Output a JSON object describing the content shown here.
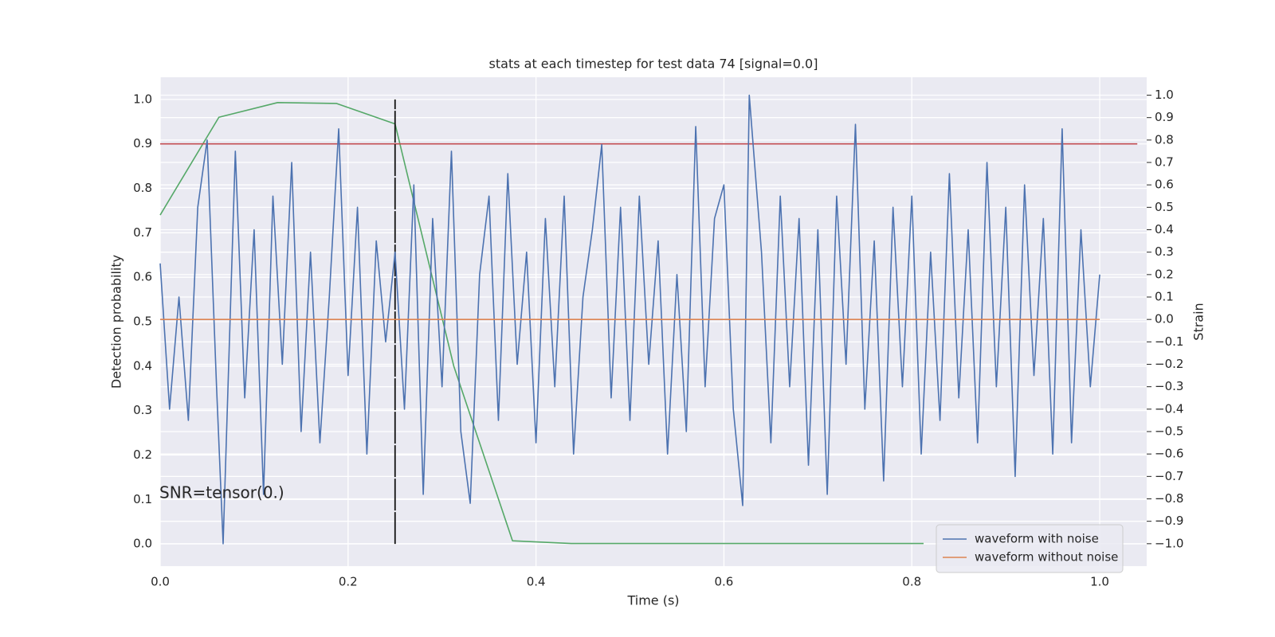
{
  "chart_data": {
    "type": "line",
    "title": "stats at each timestep for test data 74 [signal=0.0]",
    "xlabel": "Time (s)",
    "ylabel": "Detection probability",
    "y2label": "Strain",
    "annotation": "SNR=tensor(0.)",
    "xlim": [
      0,
      1.05
    ],
    "xticks": [
      {
        "value": 0,
        "label": "0.0"
      },
      {
        "value": 0.2,
        "label": "0.2"
      },
      {
        "value": 0.4,
        "label": "0.4"
      },
      {
        "value": 0.6,
        "label": "0.6"
      },
      {
        "value": 0.8,
        "label": "0.8"
      },
      {
        "value": 1,
        "label": "1.0"
      }
    ],
    "ylim": [
      -0.05,
      1.05
    ],
    "yticks": [
      {
        "value": 0,
        "label": "0.0"
      },
      {
        "value": 0.1,
        "label": "0.1"
      },
      {
        "value": 0.2,
        "label": "0.2"
      },
      {
        "value": 0.3,
        "label": "0.3"
      },
      {
        "value": 0.4,
        "label": "0.4"
      },
      {
        "value": 0.5,
        "label": "0.5"
      },
      {
        "value": 0.6,
        "label": "0.6"
      },
      {
        "value": 0.7,
        "label": "0.7"
      },
      {
        "value": 0.8,
        "label": "0.8"
      },
      {
        "value": 0.9,
        "label": "0.9"
      },
      {
        "value": 1,
        "label": "1.0"
      }
    ],
    "y2lim": [
      -1.1,
      1.08
    ],
    "y2ticks": [
      {
        "value": -1,
        "label": "−1.0"
      },
      {
        "value": -0.9,
        "label": "−0.9"
      },
      {
        "value": -0.8,
        "label": "−0.8"
      },
      {
        "value": -0.7,
        "label": "−0.7"
      },
      {
        "value": -0.6,
        "label": "−0.6"
      },
      {
        "value": -0.5,
        "label": "−0.5"
      },
      {
        "value": -0.4,
        "label": "−0.4"
      },
      {
        "value": -0.3,
        "label": "−0.3"
      },
      {
        "value": -0.2,
        "label": "−0.2"
      },
      {
        "value": -0.1,
        "label": "−0.1"
      },
      {
        "value": 0,
        "label": "0.0"
      },
      {
        "value": 0.1,
        "label": "0.1"
      },
      {
        "value": 0.2,
        "label": "0.2"
      },
      {
        "value": 0.3,
        "label": "0.3"
      },
      {
        "value": 0.4,
        "label": "0.4"
      },
      {
        "value": 0.5,
        "label": "0.5"
      },
      {
        "value": 0.6,
        "label": "0.6"
      },
      {
        "value": 0.7,
        "label": "0.7"
      },
      {
        "value": 0.8,
        "label": "0.8"
      },
      {
        "value": 0.9,
        "label": "0.9"
      },
      {
        "value": 1,
        "label": "1.0"
      }
    ],
    "grid": true,
    "legend": "lower right",
    "series": [
      {
        "name": "waveform with noise",
        "color": "#4c72b0",
        "axis": "y2",
        "x": [
          0,
          0.01,
          0.02,
          0.03,
          0.04,
          0.05,
          0.06,
          0.067,
          0.08,
          0.09,
          0.1,
          0.11,
          0.12,
          0.13,
          0.14,
          0.15,
          0.16,
          0.17,
          0.18,
          0.19,
          0.2,
          0.21,
          0.22,
          0.23,
          0.24,
          0.25,
          0.26,
          0.27,
          0.28,
          0.29,
          0.3,
          0.31,
          0.32,
          0.33,
          0.34,
          0.35,
          0.36,
          0.37,
          0.38,
          0.39,
          0.4,
          0.41,
          0.42,
          0.43,
          0.44,
          0.45,
          0.46,
          0.47,
          0.48,
          0.49,
          0.5,
          0.51,
          0.52,
          0.53,
          0.54,
          0.55,
          0.56,
          0.57,
          0.58,
          0.59,
          0.6,
          0.61,
          0.62,
          0.627,
          0.64,
          0.65,
          0.66,
          0.67,
          0.68,
          0.69,
          0.7,
          0.71,
          0.72,
          0.73,
          0.74,
          0.75,
          0.76,
          0.77,
          0.78,
          0.79,
          0.8,
          0.81,
          0.82,
          0.83,
          0.84,
          0.85,
          0.86,
          0.87,
          0.88,
          0.89,
          0.9,
          0.91,
          0.92,
          0.93,
          0.94,
          0.95,
          0.96,
          0.97,
          0.98,
          0.99,
          1
        ],
        "values": [
          0.25,
          -0.4,
          0.1,
          -0.45,
          0.5,
          0.8,
          -0.3,
          -1.0,
          0.75,
          -0.35,
          0.4,
          -0.78,
          0.55,
          -0.2,
          0.7,
          -0.5,
          0.3,
          -0.55,
          0.1,
          0.85,
          -0.25,
          0.5,
          -0.6,
          0.35,
          -0.1,
          0.3,
          -0.4,
          0.6,
          -0.78,
          0.45,
          -0.3,
          0.75,
          -0.5,
          -0.82,
          0.2,
          0.55,
          -0.45,
          0.65,
          -0.2,
          0.3,
          -0.55,
          0.45,
          -0.3,
          0.55,
          -0.6,
          0.1,
          0.4,
          0.78,
          -0.35,
          0.5,
          -0.45,
          0.55,
          -0.2,
          0.35,
          -0.6,
          0.2,
          -0.5,
          0.86,
          -0.3,
          0.45,
          0.6,
          -0.4,
          -0.83,
          1.0,
          0.3,
          -0.55,
          0.55,
          -0.3,
          0.45,
          -0.65,
          0.4,
          -0.78,
          0.55,
          -0.2,
          0.87,
          -0.4,
          0.35,
          -0.72,
          0.5,
          -0.3,
          0.55,
          -0.6,
          0.3,
          -0.45,
          0.65,
          -0.35,
          0.4,
          -0.55,
          0.7,
          -0.3,
          0.5,
          -0.7,
          0.6,
          -0.25,
          0.45,
          -0.6,
          0.85,
          -0.55,
          0.4,
          -0.3,
          0.2
        ]
      },
      {
        "name": "waveform without noise",
        "color": "#dd8452",
        "axis": "y2",
        "x": [
          0,
          1
        ],
        "values": [
          0,
          0
        ]
      }
    ],
    "probability": {
      "color": "#55a868",
      "x": [
        0,
        0.0625,
        0.125,
        0.1875,
        0.25,
        0.3125,
        0.375,
        0.4375,
        0.5,
        0.5625,
        0.625,
        0.6875,
        0.75,
        0.8125
      ],
      "values": [
        0.74,
        0.96,
        0.993,
        0.991,
        0.945,
        0.4,
        0.007,
        0.001,
        0.001,
        0.001,
        0.001,
        0.001,
        0.001,
        0.001
      ]
    },
    "threshold": {
      "value": 0.9,
      "color": "#c44e52"
    },
    "marker_x": 0.25
  }
}
